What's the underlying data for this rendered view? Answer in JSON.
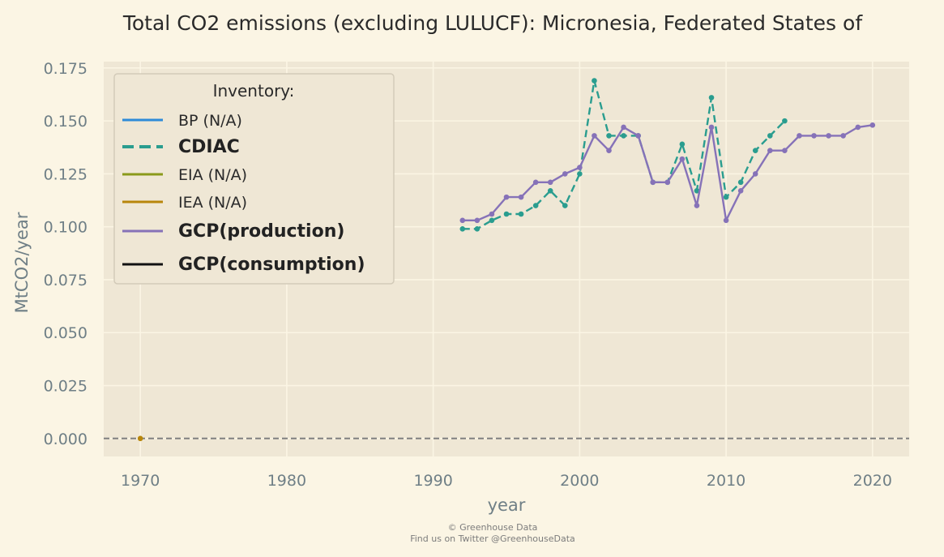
{
  "chart_data": {
    "type": "line",
    "title": "Total CO2 emissions (excluding LULUCF): Micronesia, Federated States of",
    "xlabel": "year",
    "ylabel": "MtCO2/year",
    "xlim": [
      1967.5,
      2022.5
    ],
    "ylim": [
      -0.0085,
      0.178
    ],
    "xticks": [
      1970,
      1980,
      1990,
      2000,
      2010,
      2020
    ],
    "xtick_labels": [
      "1970",
      "1980",
      "1990",
      "2000",
      "2010",
      "2020"
    ],
    "yticks": [
      0,
      0.025,
      0.05,
      0.075,
      0.1,
      0.125,
      0.15,
      0.175
    ],
    "ytick_labels": [
      "0.000",
      "0.025",
      "0.050",
      "0.075",
      "0.100",
      "0.125",
      "0.150",
      "0.175"
    ],
    "grid": true,
    "legend": {
      "title": "Inventory:",
      "position": "top-left",
      "entries": [
        {
          "label": "BP (N/A)",
          "color": "#2e8bd8",
          "style": "solid",
          "bold": false
        },
        {
          "label": "CDIAC",
          "color": "#2a9d8f",
          "style": "dashed",
          "bold": true
        },
        {
          "label": "EIA (N/A)",
          "color": "#8a9a1a",
          "style": "solid",
          "bold": false
        },
        {
          "label": "IEA (N/A)",
          "color": "#b8860b",
          "style": "solid",
          "bold": false
        },
        {
          "label": "GCP(production)",
          "color": "#8672b8",
          "style": "solid",
          "bold": true
        },
        {
          "label": "GCP(consumption)",
          "color": "#111111",
          "style": "solid",
          "bold": true
        }
      ]
    },
    "series": [
      {
        "name": "CDIAC",
        "color": "#2a9d8f",
        "style": "dashed",
        "x": [
          1992,
          1993,
          1994,
          1995,
          1996,
          1997,
          1998,
          1999,
          2000,
          2001,
          2002,
          2003,
          2004,
          2005,
          2006,
          2007,
          2008,
          2009,
          2010,
          2011,
          2012,
          2013,
          2014
        ],
        "y": [
          0.099,
          0.099,
          0.103,
          0.106,
          0.106,
          0.11,
          0.117,
          0.11,
          0.125,
          0.169,
          0.143,
          0.143,
          0.143,
          0.121,
          0.121,
          0.139,
          0.117,
          0.161,
          0.114,
          0.121,
          0.136,
          0.143,
          0.15
        ]
      },
      {
        "name": "GCP(production)",
        "color": "#8672b8",
        "style": "solid",
        "x": [
          1992,
          1993,
          1994,
          1995,
          1996,
          1997,
          1998,
          1999,
          2000,
          2001,
          2002,
          2003,
          2004,
          2005,
          2006,
          2007,
          2008,
          2009,
          2010,
          2011,
          2012,
          2013,
          2014,
          2015,
          2016,
          2017,
          2018,
          2019,
          2020
        ],
        "y": [
          0.103,
          0.103,
          0.106,
          0.114,
          0.114,
          0.121,
          0.121,
          0.125,
          0.128,
          0.143,
          0.136,
          0.147,
          0.143,
          0.121,
          0.121,
          0.132,
          0.11,
          0.147,
          0.103,
          0.117,
          0.125,
          0.136,
          0.136,
          0.143,
          0.143,
          0.143,
          0.143,
          0.147,
          0.148
        ]
      },
      {
        "name": "IEA (N/A)",
        "color": "#b8860b",
        "style": "point",
        "x": [
          1970
        ],
        "y": [
          0
        ]
      }
    ],
    "reference_line": {
      "y": 0,
      "color": "#808080",
      "style": "dashed"
    }
  },
  "credits": {
    "line1": "© Greenhouse Data",
    "line2": "Find us on Twitter @GreenhouseData"
  }
}
